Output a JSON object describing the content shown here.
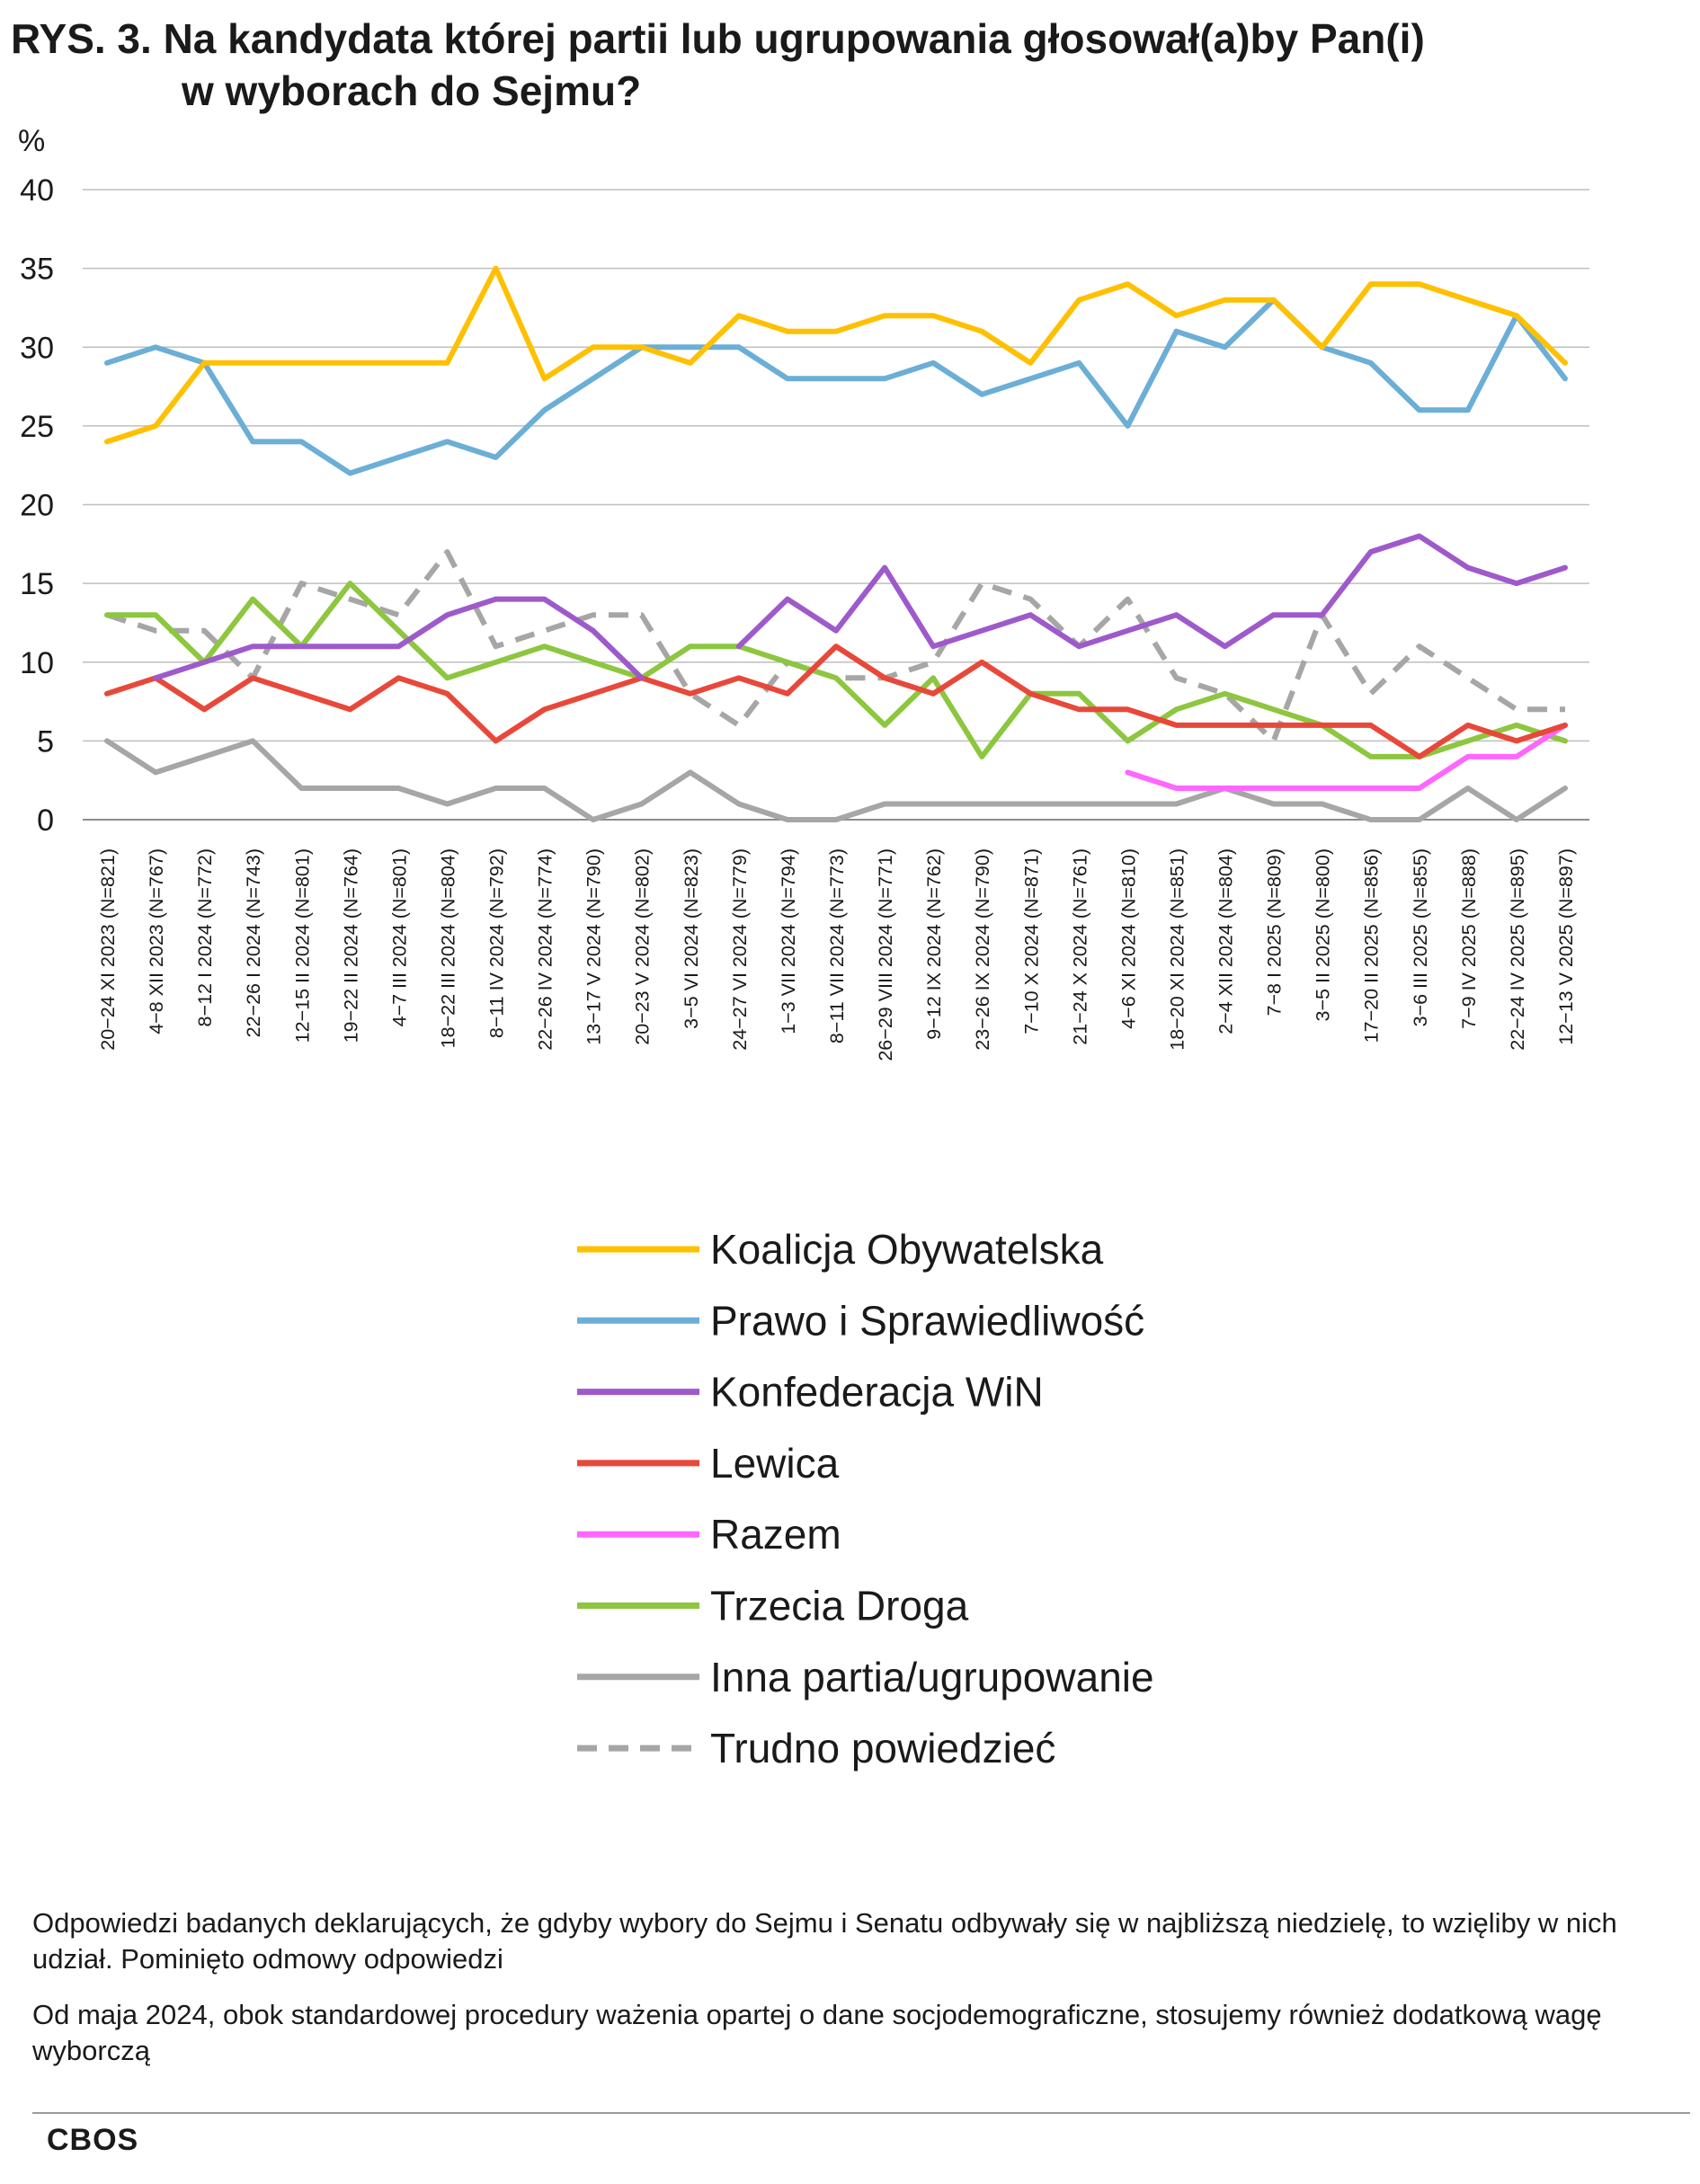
{
  "header": {
    "title_line1": "RYS. 3. Na kandydata której partii lub ugrupowania głosował(a)by Pan(i)",
    "title_line2": "w wyborach do Sejmu?"
  },
  "chart_data": {
    "type": "line",
    "title": "RYS. 3. Na kandydata której partii lub ugrupowania głosował(a)by Pan(i) w wyborach do Sejmu?",
    "ylabel": "%",
    "xlabel": "",
    "ylim": [
      0,
      40
    ],
    "yticks": [
      0,
      5,
      10,
      15,
      20,
      25,
      30,
      35,
      40
    ],
    "grid": true,
    "legend_position": "bottom",
    "categories": [
      "20−24 XI 2023 (N=821)",
      "4−8 XII 2023 (N=767)",
      "8−12 I 2024 (N=772)",
      "22−26 I 2024 (N=743)",
      "12−15 II 2024 (N=801)",
      "19−22 II 2024 (N=764)",
      "4−7 III 2024 (N=801)",
      "18−22 III 2024 (N=804)",
      "8−11 IV 2024 (N=792)",
      "22−26 IV 2024 (N=774)",
      "13−17 V 2024 (N=790)",
      "20−23 V 2024 (N=802)",
      "3−5 VI 2024 (N=823)",
      "24−27 VI 2024 (N=779)",
      "1−3 VII 2024 (N=794)",
      "8−11 VII 2024 (N=773)",
      "26−29 VIII 2024 (N=771)",
      "9−12 IX 2024 (N=762)",
      "23−26 IX 2024 (N=790)",
      "7−10 X 2024 (N=871)",
      "21−24 X 2024 (N=761)",
      "4−6 XI 2024 (N=810)",
      "18−20 XI 2024 (N=851)",
      "2−4 XII 2024 (N=804)",
      "7−8 I 2025 (N=809)",
      "3−5 II 2025 (N=800)",
      "17−20 II 2025 (N=856)",
      "3−6 III 2025 (N=855)",
      "7−9 IV 2025 (N=888)",
      "22−24 IV 2025 (N=895)",
      "12−13 V 2025 (N=897)"
    ],
    "series": [
      {
        "name": "Koalicja Obywatelska",
        "color": "#FFC000",
        "dashed": false,
        "values": [
          24,
          25,
          29,
          29,
          29,
          29,
          29,
          29,
          35,
          28,
          30,
          30,
          29,
          32,
          31,
          31,
          32,
          32,
          31,
          29,
          33,
          34,
          32,
          33,
          33,
          30,
          34,
          34,
          33,
          32,
          29
        ]
      },
      {
        "name": "Prawo i Sprawiedliwość",
        "color": "#6BAED6",
        "dashed": false,
        "values": [
          29,
          30,
          29,
          24,
          24,
          22,
          23,
          24,
          23,
          26,
          28,
          30,
          30,
          30,
          28,
          28,
          28,
          29,
          27,
          28,
          29,
          25,
          31,
          30,
          33,
          30,
          29,
          26,
          26,
          32,
          28
        ]
      },
      {
        "name": "Konfederacja WiN",
        "color": "#9E5ACB",
        "dashed": false,
        "values": [
          null,
          9,
          10,
          11,
          11,
          11,
          11,
          13,
          14,
          14,
          12,
          9,
          null,
          11,
          14,
          12,
          16,
          11,
          12,
          13,
          11,
          12,
          13,
          11,
          13,
          13,
          17,
          18,
          16,
          15,
          16
        ]
      },
      {
        "name": "Lewica",
        "color": "#E8483A",
        "dashed": false,
        "values": [
          8,
          9,
          7,
          9,
          8,
          7,
          9,
          8,
          5,
          7,
          8,
          9,
          8,
          9,
          8,
          11,
          9,
          8,
          10,
          8,
          7,
          7,
          6,
          6,
          6,
          6,
          6,
          4,
          6,
          5,
          6
        ]
      },
      {
        "name": "Razem",
        "color": "#FF66FF",
        "dashed": false,
        "values": [
          null,
          null,
          null,
          null,
          null,
          null,
          null,
          null,
          null,
          null,
          null,
          null,
          null,
          null,
          null,
          null,
          null,
          null,
          null,
          null,
          null,
          3,
          2,
          2,
          2,
          2,
          2,
          2,
          4,
          4,
          6
        ]
      },
      {
        "name": "Trzecia Droga",
        "color": "#8DC63F",
        "dashed": false,
        "values": [
          13,
          13,
          10,
          14,
          11,
          15,
          12,
          9,
          10,
          11,
          10,
          9,
          11,
          11,
          10,
          9,
          6,
          9,
          4,
          8,
          8,
          5,
          7,
          8,
          7,
          6,
          4,
          4,
          5,
          6,
          5
        ]
      },
      {
        "name": "Inna partia/ugrupowanie",
        "color": "#A6A6A6",
        "dashed": false,
        "values": [
          5,
          3,
          4,
          5,
          2,
          2,
          2,
          1,
          2,
          2,
          0,
          1,
          3,
          1,
          0,
          0,
          1,
          1,
          1,
          1,
          1,
          1,
          1,
          2,
          1,
          1,
          0,
          0,
          2,
          0,
          2
        ]
      },
      {
        "name": "Trudno powiedzieć",
        "color": "#A6A6A6",
        "dashed": true,
        "values": [
          13,
          12,
          12,
          9,
          15,
          14,
          13,
          17,
          11,
          12,
          13,
          13,
          8,
          6,
          10,
          9,
          9,
          10,
          15,
          14,
          11,
          14,
          9,
          8,
          5,
          13,
          8,
          11,
          9,
          7,
          7
        ]
      }
    ]
  },
  "footnotes": {
    "note1": "Odpowiedzi badanych deklarujących, że gdyby wybory do Sejmu i Senatu odbywały się w najbliższą niedzielę, to wzięliby w nich udział. Pominięto odmowy odpowiedzi",
    "note2": "Od maja 2024, obok standardowej procedury ważenia opartej o dane socjodemograficzne, stosujemy również dodatkową wagę wyborczą"
  },
  "brand": "CBOS"
}
